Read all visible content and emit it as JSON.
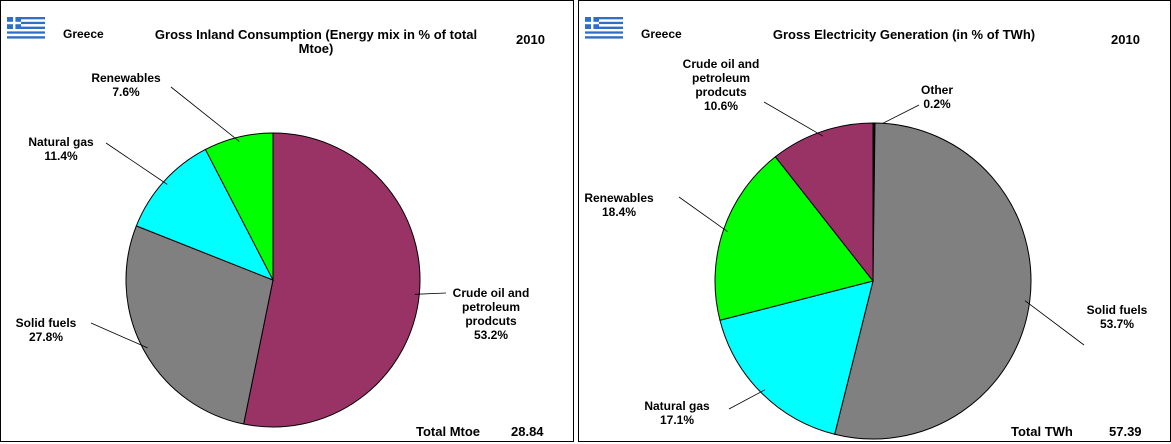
{
  "chart_data": [
    {
      "type": "pie",
      "country": "Greece",
      "title": "Gross Inland Consumption (Energy mix in % of total Mtoe)",
      "year": "2010",
      "categories": [
        "Crude oil and petroleum prodcuts",
        "Solid fuels",
        "Natural gas",
        "Renewables"
      ],
      "values": [
        53.2,
        27.8,
        11.4,
        7.6
      ],
      "value_labels": [
        "53.2%",
        "27.8%",
        "11.4%",
        "7.6%"
      ],
      "colors": [
        "#993366",
        "#808080",
        "#00ffff",
        "#00ff00"
      ],
      "total_label": "Total Mtoe",
      "total_value": 28.84
    },
    {
      "type": "pie",
      "country": "Greece",
      "title": "Gross Electricity Generation (in % of TWh)",
      "year": "2010",
      "categories": [
        "Other",
        "Solid fuels",
        "Natural gas",
        "Renewables",
        "Crude oil and petroleum prodcuts"
      ],
      "values": [
        0.2,
        53.7,
        17.1,
        18.4,
        10.6
      ],
      "value_labels": [
        "0.2%",
        "53.7%",
        "17.1%",
        "18.4%",
        "10.6%"
      ],
      "colors": [
        "#000000",
        "#808080",
        "#00ffff",
        "#00ff00",
        "#993366"
      ],
      "total_label": "Total TWh",
      "total_value": 57.39
    }
  ]
}
